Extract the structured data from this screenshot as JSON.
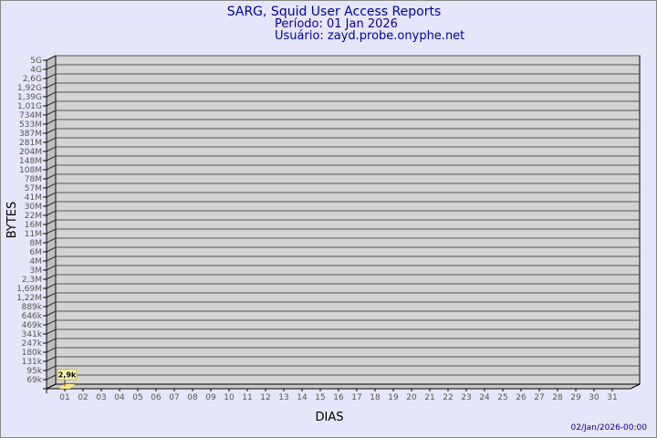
{
  "header": {
    "title": "SARG, Squid User Access Reports",
    "period": "Período: 01 Jan 2026",
    "user": "Usuário: zayd.probe.onyphe.net"
  },
  "footer": {
    "generated": "02/Jan/2026-00:00"
  },
  "colors": {
    "background": "#e6e6fa",
    "plot": "#d3d3d3",
    "title": "#0000a0",
    "bar": "#ffe680"
  },
  "chart_data": {
    "type": "bar",
    "title": "SARG, Squid User Access Reports",
    "xlabel": "DIAS",
    "ylabel": "BYTES",
    "y_scale": "log",
    "y_tick_labels": [
      "5G",
      "4G",
      "2,6G",
      "1,92G",
      "1,39G",
      "1,01G",
      "734M",
      "533M",
      "387M",
      "281M",
      "204M",
      "148M",
      "108M",
      "78M",
      "57M",
      "41M",
      "30M",
      "22M",
      "16M",
      "11M",
      "8M",
      "6M",
      "4M",
      "3M",
      "2,3M",
      "1,69M",
      "1,22M",
      "889k",
      "646k",
      "469k",
      "341k",
      "247k",
      "180k",
      "131k",
      "95k",
      "69k"
    ],
    "categories": [
      "01",
      "02",
      "03",
      "04",
      "05",
      "06",
      "07",
      "08",
      "09",
      "10",
      "11",
      "12",
      "13",
      "14",
      "15",
      "16",
      "17",
      "18",
      "19",
      "20",
      "21",
      "22",
      "23",
      "24",
      "25",
      "26",
      "27",
      "28",
      "29",
      "30",
      "31"
    ],
    "values": [
      2900,
      null,
      null,
      null,
      null,
      null,
      null,
      null,
      null,
      null,
      null,
      null,
      null,
      null,
      null,
      null,
      null,
      null,
      null,
      null,
      null,
      null,
      null,
      null,
      null,
      null,
      null,
      null,
      null,
      null,
      null
    ],
    "data_labels": [
      "2,9k"
    ],
    "grid": true,
    "legend": "none"
  }
}
